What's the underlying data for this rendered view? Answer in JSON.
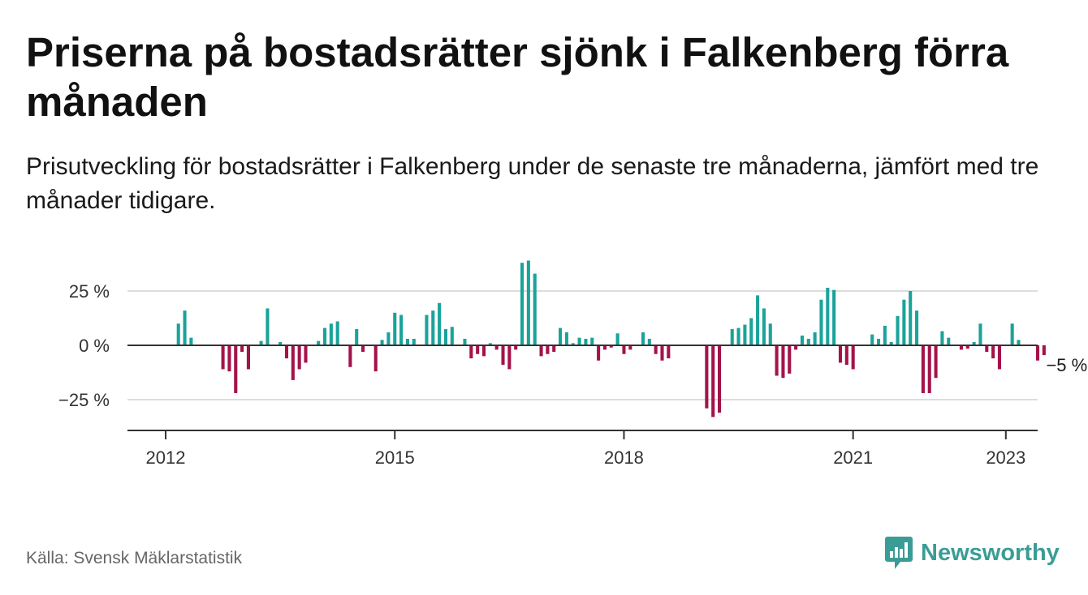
{
  "title": "Priserna på bostadsrätter sjönk i Falkenberg förra månaden",
  "subtitle": "Prisutveckling för bostadsrätter i Falkenberg under de senaste tre månaderna, jämfört med tre månader tidigare.",
  "source": "Källa: Svensk Mäklarstatistik",
  "brand": "Newsworthy",
  "colors": {
    "positive": "#1aa39a",
    "negative": "#a3134a",
    "brand": "#3a9d95",
    "grid": "#dddddd",
    "axis": "#333333"
  },
  "chart_data": {
    "type": "bar",
    "x_start": "2012-01",
    "x_end": "2023-01",
    "xlim": [
      "2011-07",
      "2023-06"
    ],
    "x_tick_labels": [
      "2012",
      "2015",
      "2018",
      "2021",
      "2023"
    ],
    "x_tick_values": [
      "2012-01",
      "2015-01",
      "2018-01",
      "2021-01",
      "2023-01"
    ],
    "y_tick_labels": [
      "25 %",
      "0 %",
      "−25 %"
    ],
    "y_tick_values": [
      25,
      0,
      -25
    ],
    "ylim": [
      -39,
      40
    ],
    "last_value_label": "−5 %",
    "values": [
      null,
      null,
      10,
      16,
      3.5,
      0,
      0,
      0,
      0,
      -11,
      -12,
      -22,
      -3,
      -11,
      0,
      2,
      17,
      0,
      1.5,
      -6,
      -16,
      -11,
      -8,
      0,
      2,
      8,
      10,
      11,
      0,
      -10,
      7.5,
      -3,
      0,
      -12,
      2.5,
      6,
      15,
      14,
      3,
      3,
      0,
      14,
      16,
      19.5,
      7.5,
      8.5,
      0,
      3,
      -6,
      -4,
      -5,
      1,
      -2,
      -9,
      -11,
      -2,
      38,
      39,
      33,
      -5,
      -4,
      -3,
      8,
      6,
      1,
      3.5,
      3,
      3.5,
      -7,
      -2,
      -1,
      5.5,
      -4,
      -2,
      0,
      6,
      3,
      -4,
      -7,
      -6,
      0,
      0,
      0,
      0,
      0,
      -29,
      -33,
      -31,
      0,
      7.5,
      8,
      9.5,
      12.5,
      23,
      17,
      10,
      -14,
      -15,
      -13,
      -2,
      4.5,
      3,
      6,
      21,
      26.5,
      25.5,
      -8,
      -9,
      -11,
      0,
      0,
      5,
      3,
      9,
      1.5,
      13.5,
      21,
      25,
      16,
      -22,
      -22,
      -15,
      6.5,
      3.5,
      0,
      -2,
      -1.5,
      1.5,
      10,
      -3,
      -6,
      -11,
      0,
      10,
      2.5,
      0,
      0,
      -7,
      -4.5
    ]
  }
}
